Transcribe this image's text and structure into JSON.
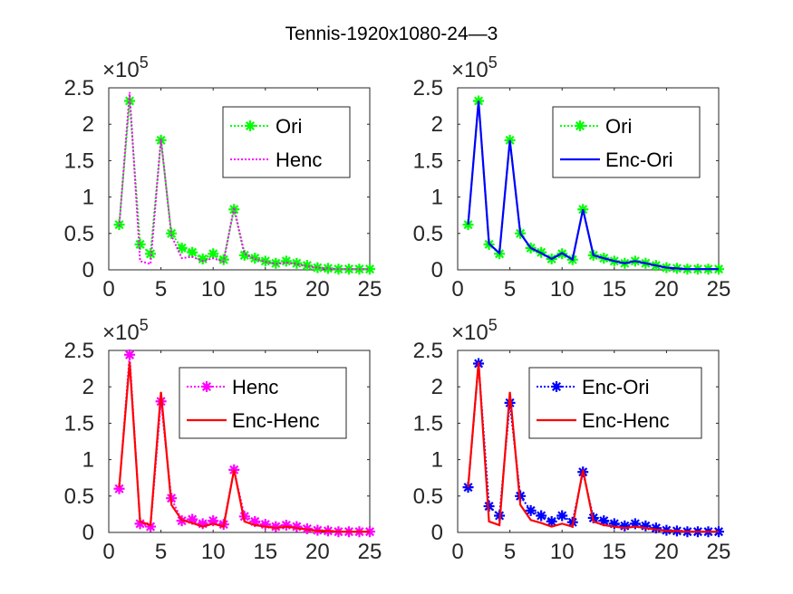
{
  "title": "Tennis-1920x1080-24—3",
  "colors": {
    "ori": "#00ff00",
    "henc": "#ff00ff",
    "enc_ori": "#0000ff",
    "enc_henc": "#ff0000"
  },
  "chart_data": [
    {
      "type": "line",
      "xlim": [
        0,
        25
      ],
      "ylim": [
        0,
        2.5
      ],
      "y_multiplier": "×10^5",
      "xticks": [
        "0",
        "5",
        "10",
        "15",
        "20",
        "25"
      ],
      "yticks": [
        "0",
        "0.5",
        "1",
        "1.5",
        "2",
        "2.5"
      ],
      "legend_position": "top-right",
      "x": [
        1,
        2,
        3,
        4,
        5,
        6,
        7,
        8,
        9,
        10,
        11,
        12,
        13,
        14,
        15,
        16,
        17,
        18,
        19,
        20,
        21,
        22,
        23,
        24,
        25
      ],
      "series": [
        {
          "name": "Ori",
          "style": "dotted-star",
          "color": "#00ff00",
          "values": [
            0.62,
            2.32,
            0.35,
            0.22,
            1.78,
            0.5,
            0.3,
            0.24,
            0.15,
            0.22,
            0.14,
            0.83,
            0.2,
            0.16,
            0.12,
            0.09,
            0.12,
            0.09,
            0.06,
            0.03,
            0.02,
            0.01,
            0.01,
            0.01,
            0.01
          ]
        },
        {
          "name": "Henc",
          "style": "dotted",
          "color": "#ff00ff",
          "values": [
            0.6,
            2.44,
            0.12,
            0.08,
            1.8,
            0.47,
            0.16,
            0.18,
            0.12,
            0.16,
            0.11,
            0.86,
            0.22,
            0.15,
            0.11,
            0.08,
            0.1,
            0.08,
            0.05,
            0.03,
            0.02,
            0.01,
            0.01,
            0.01,
            0.01
          ]
        }
      ]
    },
    {
      "type": "line",
      "xlim": [
        0,
        25
      ],
      "ylim": [
        0,
        2.5
      ],
      "y_multiplier": "×10^5",
      "xticks": [
        "0",
        "5",
        "10",
        "15",
        "20",
        "25"
      ],
      "yticks": [
        "0",
        "0.5",
        "1",
        "1.5",
        "2",
        "2.5"
      ],
      "legend_position": "top-right",
      "x": [
        1,
        2,
        3,
        4,
        5,
        6,
        7,
        8,
        9,
        10,
        11,
        12,
        13,
        14,
        15,
        16,
        17,
        18,
        19,
        20,
        21,
        22,
        23,
        24,
        25
      ],
      "series": [
        {
          "name": "Ori",
          "style": "dotted-star",
          "color": "#00ff00",
          "values": [
            0.62,
            2.32,
            0.35,
            0.22,
            1.78,
            0.5,
            0.3,
            0.24,
            0.15,
            0.22,
            0.14,
            0.83,
            0.2,
            0.16,
            0.12,
            0.09,
            0.12,
            0.09,
            0.06,
            0.03,
            0.02,
            0.01,
            0.01,
            0.01,
            0.01
          ]
        },
        {
          "name": "Enc-Ori",
          "style": "solid",
          "color": "#0000ff",
          "values": [
            0.62,
            2.32,
            0.36,
            0.23,
            1.78,
            0.5,
            0.3,
            0.23,
            0.15,
            0.23,
            0.14,
            0.83,
            0.2,
            0.16,
            0.12,
            0.09,
            0.12,
            0.09,
            0.06,
            0.03,
            0.02,
            0.01,
            0.01,
            0.01,
            0.01
          ]
        }
      ]
    },
    {
      "type": "line",
      "xlim": [
        0,
        25
      ],
      "ylim": [
        0,
        2.5
      ],
      "y_multiplier": "×10^5",
      "xticks": [
        "0",
        "5",
        "10",
        "15",
        "20",
        "25"
      ],
      "yticks": [
        "0",
        "0.5",
        "1",
        "1.5",
        "2",
        "2.5"
      ],
      "legend_position": "top-right",
      "x": [
        1,
        2,
        3,
        4,
        5,
        6,
        7,
        8,
        9,
        10,
        11,
        12,
        13,
        14,
        15,
        16,
        17,
        18,
        19,
        20,
        21,
        22,
        23,
        24,
        25
      ],
      "series": [
        {
          "name": "Henc",
          "style": "dotted-star",
          "color": "#ff00ff",
          "values": [
            0.6,
            2.44,
            0.12,
            0.08,
            1.8,
            0.47,
            0.16,
            0.18,
            0.12,
            0.16,
            0.11,
            0.86,
            0.22,
            0.15,
            0.11,
            0.08,
            0.1,
            0.08,
            0.05,
            0.03,
            0.02,
            0.01,
            0.01,
            0.01,
            0.01
          ]
        },
        {
          "name": "Enc-Henc",
          "style": "solid",
          "color": "#ff0000",
          "values": [
            0.62,
            2.34,
            0.15,
            0.1,
            1.93,
            0.38,
            0.17,
            0.13,
            0.08,
            0.12,
            0.08,
            0.86,
            0.15,
            0.1,
            0.08,
            0.06,
            0.08,
            0.06,
            0.04,
            0.02,
            0.02,
            0.01,
            0.01,
            0.01,
            0.01
          ]
        }
      ]
    },
    {
      "type": "line",
      "xlim": [
        0,
        25
      ],
      "ylim": [
        0,
        2.5
      ],
      "y_multiplier": "×10^5",
      "xticks": [
        "0",
        "5",
        "10",
        "15",
        "20",
        "25"
      ],
      "yticks": [
        "0",
        "0.5",
        "1",
        "1.5",
        "2",
        "2.5"
      ],
      "legend_position": "top-right",
      "x": [
        1,
        2,
        3,
        4,
        5,
        6,
        7,
        8,
        9,
        10,
        11,
        12,
        13,
        14,
        15,
        16,
        17,
        18,
        19,
        20,
        21,
        22,
        23,
        24,
        25
      ],
      "series": [
        {
          "name": "Enc-Ori",
          "style": "dotted-star",
          "color": "#0000ff",
          "values": [
            0.62,
            2.32,
            0.36,
            0.23,
            1.78,
            0.5,
            0.3,
            0.23,
            0.15,
            0.23,
            0.14,
            0.83,
            0.2,
            0.16,
            0.12,
            0.09,
            0.12,
            0.09,
            0.06,
            0.03,
            0.02,
            0.01,
            0.01,
            0.01,
            0.01
          ]
        },
        {
          "name": "Enc-Henc",
          "style": "solid",
          "color": "#ff0000",
          "values": [
            0.62,
            2.34,
            0.15,
            0.1,
            1.93,
            0.38,
            0.17,
            0.13,
            0.08,
            0.12,
            0.08,
            0.86,
            0.15,
            0.1,
            0.08,
            0.06,
            0.08,
            0.06,
            0.04,
            0.02,
            0.02,
            0.01,
            0.01,
            0.01,
            0.01
          ]
        }
      ]
    }
  ]
}
